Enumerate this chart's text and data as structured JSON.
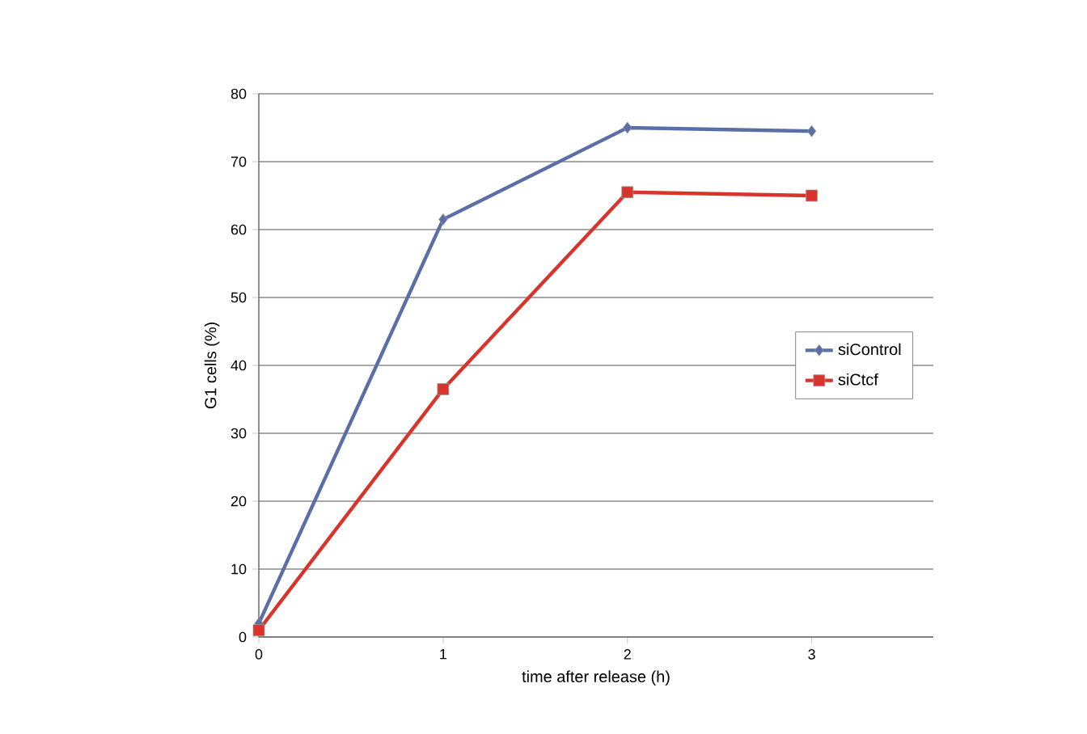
{
  "chart_data": {
    "type": "line",
    "xlabel": "time after release (h)",
    "ylabel": "G1 cells (%)",
    "x": [
      0,
      1,
      2,
      3
    ],
    "series": [
      {
        "name": "siControl",
        "color": "#5b6fa6",
        "marker": "diamond",
        "values": [
          2,
          61.5,
          75,
          74.5
        ]
      },
      {
        "name": "siCtcf",
        "color": "#d9342b",
        "marker": "square",
        "values": [
          1,
          36.5,
          65.5,
          65
        ]
      }
    ],
    "xlim": [
      0,
      3.66
    ],
    "xticks": [
      0,
      1,
      2,
      3
    ],
    "ylim": [
      0,
      80
    ],
    "yticks": [
      0,
      10,
      20,
      30,
      40,
      50,
      60,
      70,
      80
    ],
    "grid": "y",
    "legend": "right",
    "line_style": "solid"
  }
}
